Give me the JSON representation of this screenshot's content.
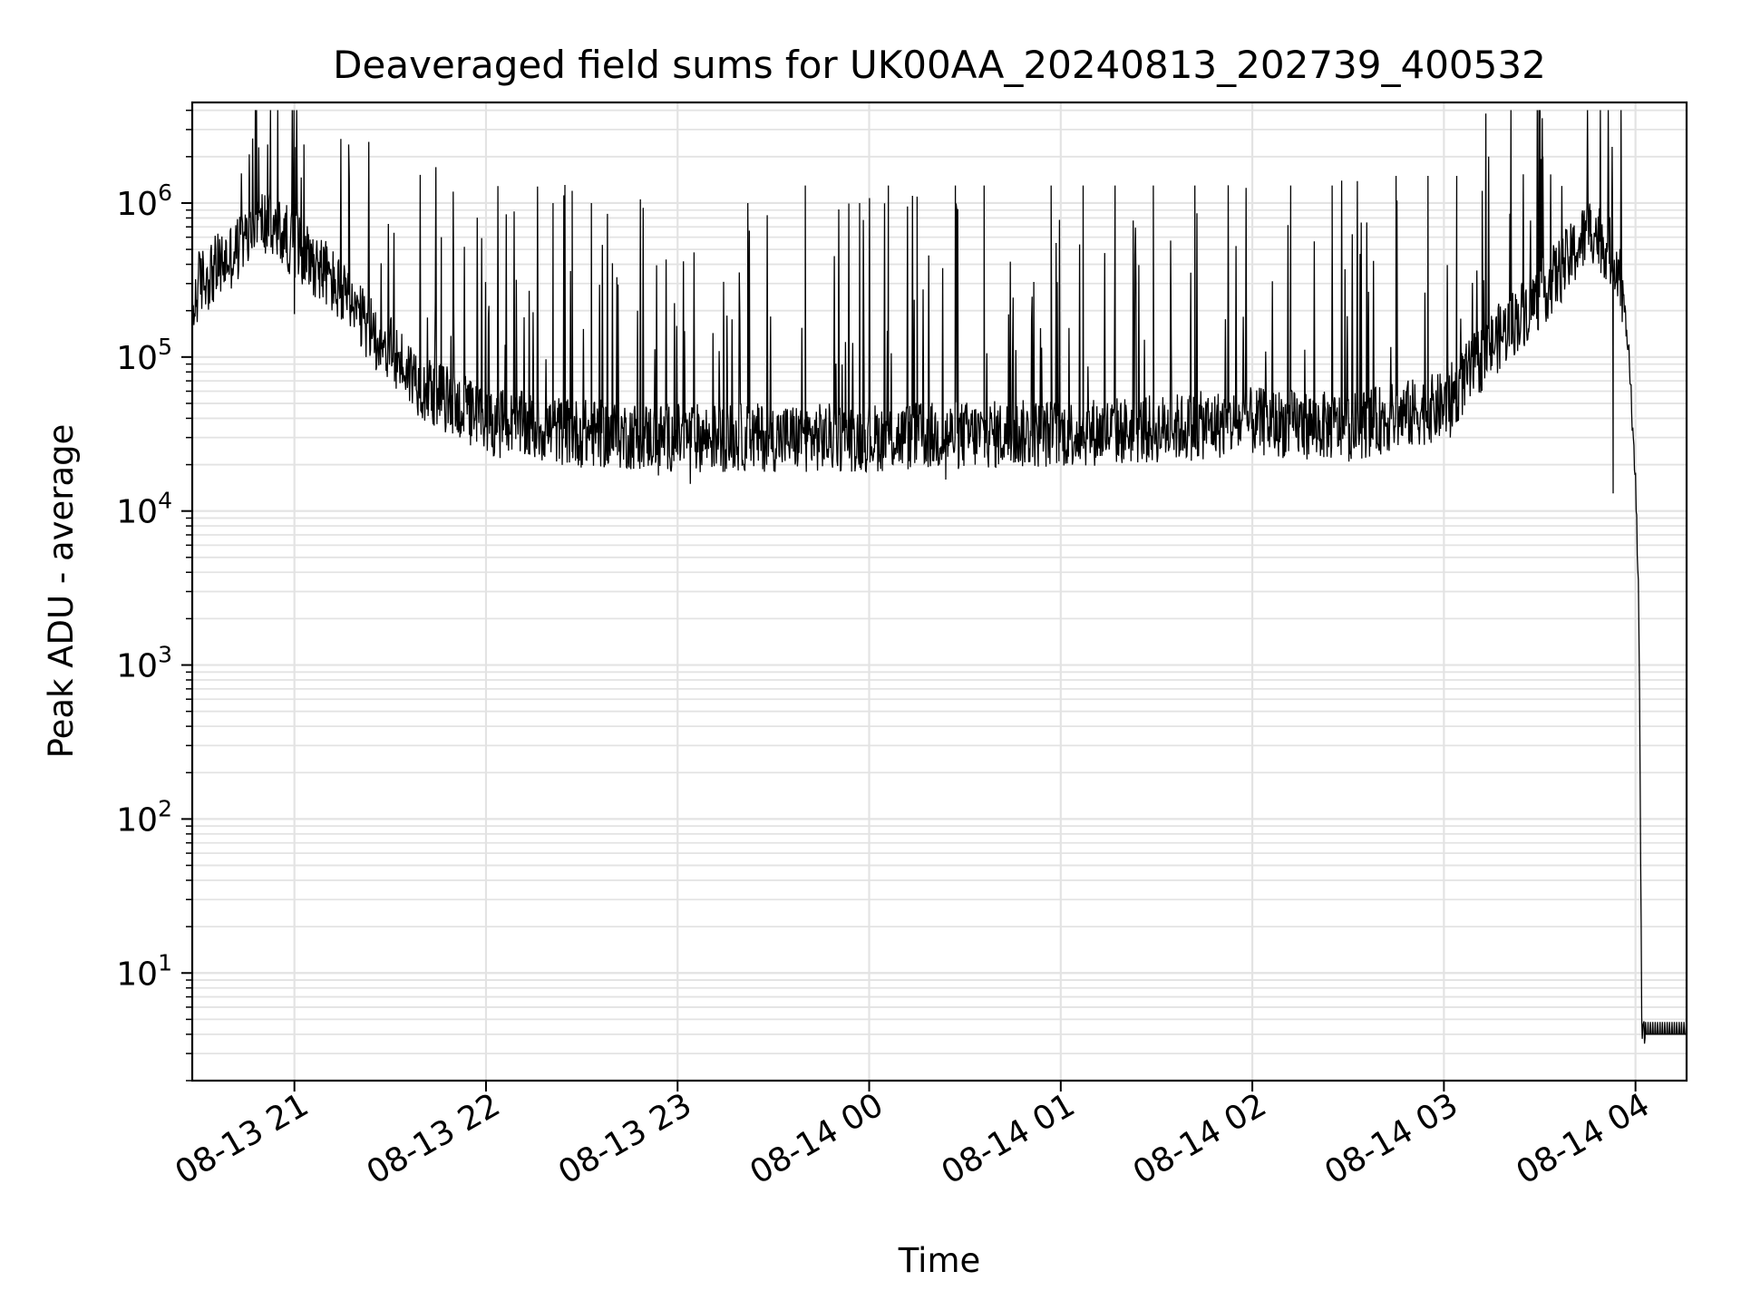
{
  "chart_data": {
    "type": "line",
    "title": "Deaveraged field sums for UK00AA_20240813_202739_400532",
    "xlabel": "Time",
    "ylabel": "Peak ADU - average",
    "yscale": "log",
    "grid": true,
    "xlim": [
      "2024-08-13 20:28",
      "2024-08-14 04:16"
    ],
    "ylim": [
      2,
      4500000
    ],
    "x_tick_labels": [
      "08-13 21",
      "08-13 22",
      "08-13 23",
      "08-14 00",
      "08-14 01",
      "08-14 02",
      "08-14 03",
      "08-14 04"
    ],
    "x_ticks": [
      "2024-08-13 21:00",
      "2024-08-13 22:00",
      "2024-08-13 23:00",
      "2024-08-14 00:00",
      "2024-08-14 01:00",
      "2024-08-14 02:00",
      "2024-08-14 03:00",
      "2024-08-14 04:00"
    ],
    "y_ticks": [
      {
        "value": 10,
        "base": "10",
        "exp": "1"
      },
      {
        "value": 100,
        "base": "10",
        "exp": "2"
      },
      {
        "value": 1000,
        "base": "10",
        "exp": "3"
      },
      {
        "value": 10000,
        "base": "10",
        "exp": "4"
      },
      {
        "value": 100000,
        "base": "10",
        "exp": "5"
      },
      {
        "value": 1000000,
        "base": "10",
        "exp": "6"
      }
    ],
    "series": [
      {
        "color": "#000000",
        "baseline": {
          "x": [
            "2024-08-13 20:28",
            "2024-08-13 20:30",
            "2024-08-13 20:40",
            "2024-08-13 20:50",
            "2024-08-13 21:00",
            "2024-08-13 21:10",
            "2024-08-13 21:20",
            "2024-08-13 21:30",
            "2024-08-13 21:40",
            "2024-08-13 22:00",
            "2024-08-13 22:30",
            "2024-08-13 23:00",
            "2024-08-13 23:30",
            "2024-08-14 00:00",
            "2024-08-14 00:30",
            "2024-08-14 01:00",
            "2024-08-14 01:30",
            "2024-08-14 02:00",
            "2024-08-14 02:30",
            "2024-08-14 03:00",
            "2024-08-14 03:15",
            "2024-08-14 03:30",
            "2024-08-14 03:40",
            "2024-08-14 03:46",
            "2024-08-14 03:50",
            "2024-08-14 03:55",
            "2024-08-14 03:58",
            "2024-08-14 04:00",
            "2024-08-14 04:01",
            "2024-08-14 04:02",
            "2024-08-14 04:03",
            "2024-08-14 04:16"
          ],
          "y": [
            180000,
            300000,
            450000,
            750000,
            550000,
            350000,
            180000,
            110000,
            65000,
            38000,
            32000,
            30000,
            30000,
            30000,
            31000,
            32000,
            34000,
            38000,
            35000,
            48000,
            120000,
            250000,
            450000,
            700000,
            550000,
            400000,
            100000,
            15000,
            3000,
            4,
            4,
            4
          ]
        },
        "peaks": [
          {
            "x": "2024-08-13 21:03",
            "y": 2400000
          },
          {
            "x": "2024-08-13 21:17",
            "y": 2400000
          },
          {
            "x": "2024-08-13 21:46",
            "y": 600000
          },
          {
            "x": "2024-08-13 22:21",
            "y": 1000000
          },
          {
            "x": "2024-08-13 22:27",
            "y": 1200000
          },
          {
            "x": "2024-08-13 22:33",
            "y": 1000000
          },
          {
            "x": "2024-08-13 23:22",
            "y": 1000000
          },
          {
            "x": "2024-08-13 23:40",
            "y": 1300000
          },
          {
            "x": "2024-08-13 23:57",
            "y": 1000000
          },
          {
            "x": "2024-08-14 00:06",
            "y": 1300000
          },
          {
            "x": "2024-08-14 00:15",
            "y": 1100000
          },
          {
            "x": "2024-08-14 00:27",
            "y": 1300000
          },
          {
            "x": "2024-08-14 00:36",
            "y": 1300000
          },
          {
            "x": "2024-08-14 00:57",
            "y": 1300000
          },
          {
            "x": "2024-08-14 01:07",
            "y": 1300000
          },
          {
            "x": "2024-08-14 01:17",
            "y": 1300000
          },
          {
            "x": "2024-08-14 01:29",
            "y": 1300000
          },
          {
            "x": "2024-08-14 01:42",
            "y": 1300000
          },
          {
            "x": "2024-08-14 02:12",
            "y": 1300000
          },
          {
            "x": "2024-08-14 02:25",
            "y": 1300000
          },
          {
            "x": "2024-08-14 02:45",
            "y": 1500000
          },
          {
            "x": "2024-08-14 02:55",
            "y": 1500000
          },
          {
            "x": "2024-08-14 03:04",
            "y": 1500000
          },
          {
            "x": "2024-08-14 03:12",
            "y": 1200000
          },
          {
            "x": "2024-08-14 03:31",
            "y": 2000000
          },
          {
            "x": "2024-08-14 03:46",
            "y": 900000
          }
        ],
        "dips": [
          {
            "x": "2024-08-13 21:00",
            "y": 190000
          },
          {
            "x": "2024-08-13 22:54",
            "y": 17000
          },
          {
            "x": "2024-08-13 23:04",
            "y": 15000
          },
          {
            "x": "2024-08-14 00:24",
            "y": 16000
          },
          {
            "x": "2024-08-14 02:50",
            "y": 27000
          },
          {
            "x": "2024-08-14 03:02",
            "y": 30000
          },
          {
            "x": "2024-08-14 03:53",
            "y": 13000
          }
        ]
      }
    ]
  }
}
